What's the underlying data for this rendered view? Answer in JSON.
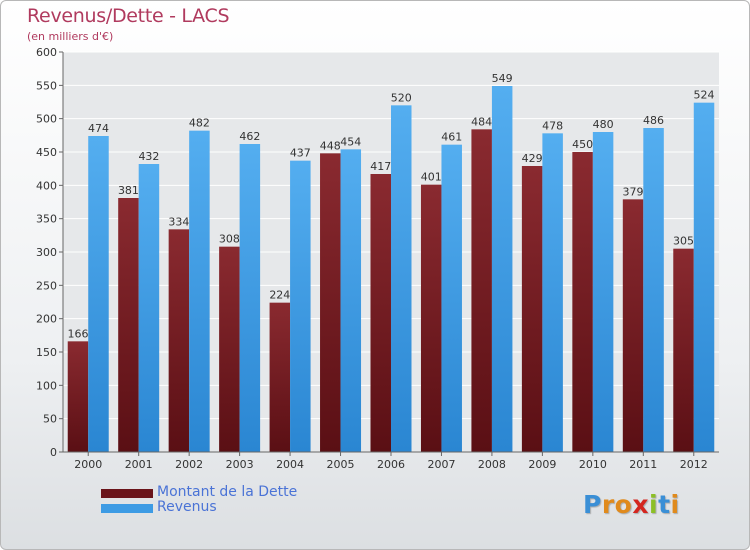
{
  "header": {
    "title": "Revenus/Dette - LACS",
    "subtitle": "(en milliers d'€)"
  },
  "chart_data": {
    "type": "bar",
    "categories": [
      "2000",
      "2001",
      "2002",
      "2003",
      "2004",
      "2005",
      "2006",
      "2007",
      "2008",
      "2009",
      "2010",
      "2011",
      "2012"
    ],
    "series": [
      {
        "name": "Montant de la Dette",
        "values": [
          166,
          381,
          334,
          308,
          224,
          448,
          417,
          401,
          484,
          429,
          450,
          379,
          305
        ],
        "color": "#7a1f24"
      },
      {
        "name": "Revenus",
        "values": [
          474,
          432,
          482,
          462,
          437,
          454,
          520,
          461,
          549,
          478,
          480,
          486,
          524
        ],
        "color": "#3d9be4"
      }
    ],
    "ylim": [
      0,
      600
    ],
    "yticks": [
      0,
      50,
      100,
      150,
      200,
      250,
      300,
      350,
      400,
      450,
      500,
      550,
      600
    ],
    "grid": true,
    "legend_position": "bottom-left"
  },
  "legend": {
    "items": [
      "Montant de la Dette",
      "Revenus"
    ]
  },
  "logo": {
    "letters": [
      "P",
      "r",
      "o",
      "x",
      "i",
      "t",
      "i"
    ],
    "colors": [
      "#3a8fd6",
      "#e08a1c",
      "#e08a1c",
      "#d4261f",
      "#8cbf26",
      "#3a8fd6",
      "#e08a1c"
    ]
  }
}
